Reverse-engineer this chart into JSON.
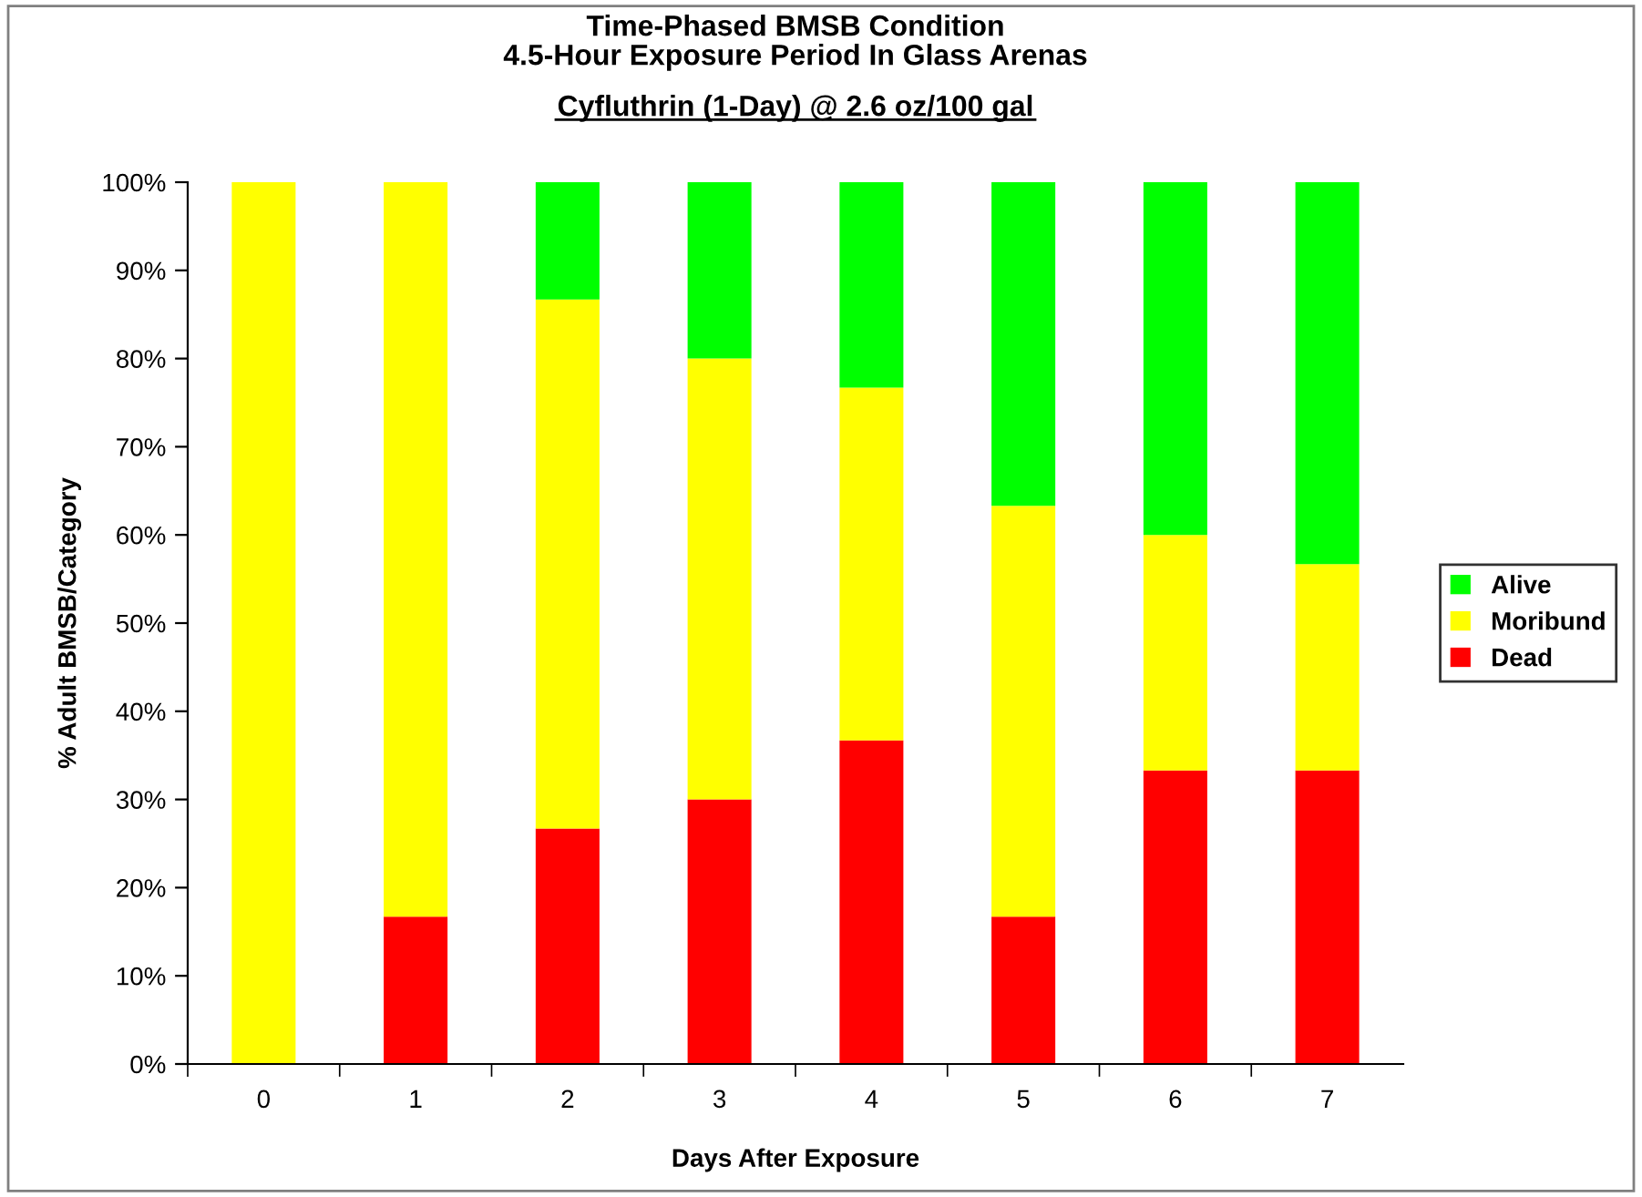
{
  "chart_data": {
    "type": "bar",
    "stacked": true,
    "title": "Time-Phased BMSB Condition\n4.5-Hour Exposure Period In Glass Arenas",
    "subtitle": "Cyfluthrin (1-Day) @ 2.6 oz/100 gal",
    "xlabel": "Days After Exposure",
    "ylabel": "% Adult BMSB/Category",
    "categories": [
      "0",
      "1",
      "2",
      "3",
      "4",
      "5",
      "6",
      "7"
    ],
    "series": [
      {
        "name": "Dead",
        "color": "#ff0000",
        "values": [
          0,
          16.7,
          26.7,
          30,
          36.7,
          16.7,
          33.3,
          33.3
        ]
      },
      {
        "name": "Moribund",
        "color": "#ffff00",
        "values": [
          100,
          83.3,
          60,
          50,
          40,
          46.6,
          26.7,
          23.4
        ]
      },
      {
        "name": "Alive",
        "color": "#00ff00",
        "values": [
          0,
          0,
          13.3,
          20,
          23.3,
          36.7,
          40,
          43.3
        ]
      }
    ],
    "ylim": [
      0,
      100
    ],
    "yticks": [
      {
        "value": 0,
        "label": "0%"
      },
      {
        "value": 10,
        "label": "10%"
      },
      {
        "value": 20,
        "label": "20%"
      },
      {
        "value": 30,
        "label": "30%"
      },
      {
        "value": 40,
        "label": "40%"
      },
      {
        "value": 50,
        "label": "50%"
      },
      {
        "value": 60,
        "label": "60%"
      },
      {
        "value": 70,
        "label": "70%"
      },
      {
        "value": 80,
        "label": "80%"
      },
      {
        "value": 90,
        "label": "90%"
      },
      {
        "value": 100,
        "label": "100%"
      }
    ],
    "legend": "right",
    "grid": false
  }
}
